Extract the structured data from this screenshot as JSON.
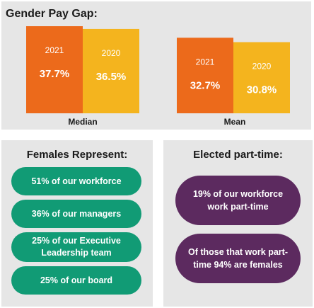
{
  "pay_gap_title": "Gender Pay Gap:",
  "chart_data": {
    "type": "bar",
    "categories": [
      "Median",
      "Mean"
    ],
    "series": [
      {
        "name": "2021",
        "values": [
          37.7,
          32.7
        ],
        "labels": [
          "37.7%",
          "32.7%"
        ],
        "color": "#ec6a1b"
      },
      {
        "name": "2020",
        "values": [
          36.5,
          30.8
        ],
        "labels": [
          "36.5%",
          "30.8%"
        ],
        "color": "#f4b41e"
      }
    ],
    "title": "Gender Pay Gap:",
    "xlabel": "",
    "ylabel": "",
    "ylim": [
      0,
      37.7
    ],
    "grid": false,
    "legend": "none"
  },
  "females": {
    "title": "Females Represent:",
    "items": [
      "51% of our workforce",
      "36% of our managers",
      "25% of our Executive Leadership team",
      "25% of our board"
    ]
  },
  "part_time": {
    "title": "Elected part-time:",
    "items": [
      "19% of our workforce work part-time",
      "Of those that work part-time 94% are females"
    ]
  },
  "colors": {
    "panel_bg": "#e6e6e6",
    "green": "#119b75",
    "purple": "#5c2a5f",
    "orange": "#ec6a1b",
    "yellow": "#f4b41e"
  }
}
